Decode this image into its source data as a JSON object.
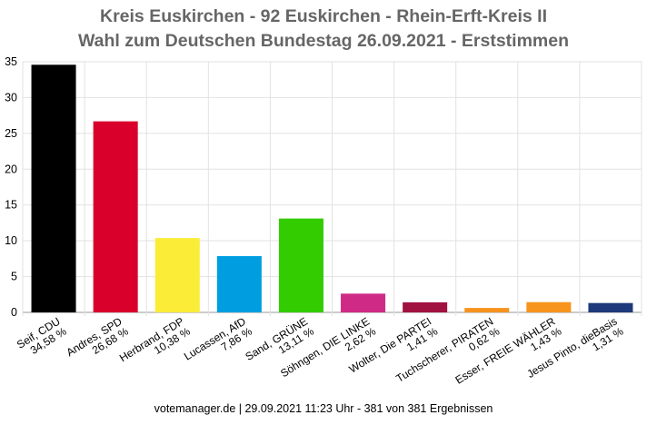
{
  "header": {
    "title_line1": "Kreis Euskirchen - 92 Euskirchen - Rhein-Erft-Kreis II",
    "title_line2": "Wahl zum Deutschen Bundestag 26.09.2021  - Erststimmen"
  },
  "footer": {
    "text": "votemanager.de | 29.09.2021 11:23 Uhr - 381 von 381 Ergebnissen"
  },
  "chart_data": {
    "type": "bar",
    "title": "Kreis Euskirchen - 92 Euskirchen - Rhein-Erft-Kreis II / Wahl zum Deutschen Bundestag 26.09.2021  - Erststimmen",
    "xlabel": "",
    "ylabel": "",
    "ylim": [
      0,
      35
    ],
    "yticks": [
      "0",
      "5",
      "10",
      "15",
      "20",
      "25",
      "30",
      "35"
    ],
    "grid": true,
    "legend": "none",
    "categories": [
      "Seif, CDU",
      "Andres, SPD",
      "Herbrand, FDP",
      "Lucassen, AfD",
      "Sand, GRÜNE",
      "Söhngen, DIE LINKE",
      "Wolter, Die PARTEI",
      "Tuchscherer, PIRATEN",
      "Esser, FREIE WÄHLER",
      "Jesus Pinto, dieBasis"
    ],
    "value_labels": [
      "34,58 %",
      "26,68 %",
      "10,38 %",
      "7,86 %",
      "13,11 %",
      "2,62 %",
      "1,41 %",
      "0,62 %",
      "1,43 %",
      "1,31 %"
    ],
    "values": [
      34.58,
      26.68,
      10.38,
      7.86,
      13.11,
      2.62,
      1.41,
      0.62,
      1.43,
      1.31
    ],
    "colors": [
      "#000000",
      "#d9002c",
      "#fbec37",
      "#009ee0",
      "#33cc00",
      "#d02a87",
      "#a0123f",
      "#f6921e",
      "#f7941d",
      "#1f3a7a"
    ]
  }
}
